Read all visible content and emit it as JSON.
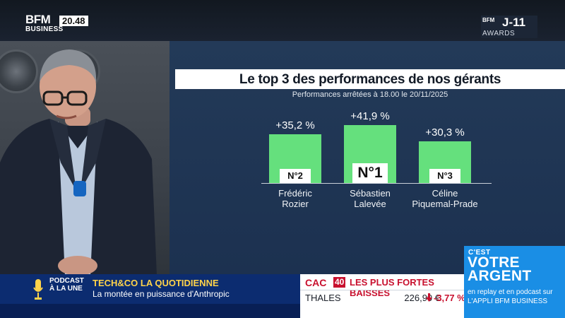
{
  "header": {
    "logo_line1": "BFM",
    "logo_line2": "BUSINESS",
    "time": "20.48",
    "countdown_brand": "BFM",
    "countdown_brand2": "AWARDS",
    "countdown": "J-11"
  },
  "infographic": {
    "title": "Le top 3 des performances de nos gérants",
    "subtitle": "Performances arrêtées à 18.00 le 20/11/2025",
    "bar_color": "#65e07d"
  },
  "chart_data": {
    "type": "bar",
    "title": "Le top 3 des performances de nos gérants",
    "subtitle": "Performances arrêtées à 18.00 le 20/11/2025",
    "categories": [
      "Frédéric Rozier",
      "Sébastien Lalevée",
      "Céline Piquemal-Prade"
    ],
    "category_lines": [
      [
        "Frédéric",
        "Rozier"
      ],
      [
        "Sébastien",
        "Lalevée"
      ],
      [
        "Céline",
        "Piquemal-Prade"
      ]
    ],
    "values": [
      35.2,
      41.9,
      30.3
    ],
    "value_labels": [
      "+35,2 %",
      "+41,9 %",
      "+30,3 %"
    ],
    "ranks": [
      "N°2",
      "N°1",
      "N°3"
    ],
    "ylim": [
      0,
      41.9
    ],
    "grid": false
  },
  "ticker": {
    "podcast_label_1": "PODCAST",
    "podcast_label_2": "À LA UNE",
    "show": "TECH&CO LA QUOTIDIENNE",
    "topic": "La montée en puissance d'Anthropic"
  },
  "market": {
    "index": "CAC",
    "index_num": "40",
    "heading": "LES PLUS FORTES BAISSES",
    "stock": "THALES",
    "price": "226,90 €",
    "change": "-3,77 %",
    "down_color": "#c8102e"
  },
  "promo": {
    "prefix": "C'EST",
    "show": "VOTRE ARGENT",
    "sub": "en replay et en podcast sur L'APPLI BFM BUSINESS"
  }
}
